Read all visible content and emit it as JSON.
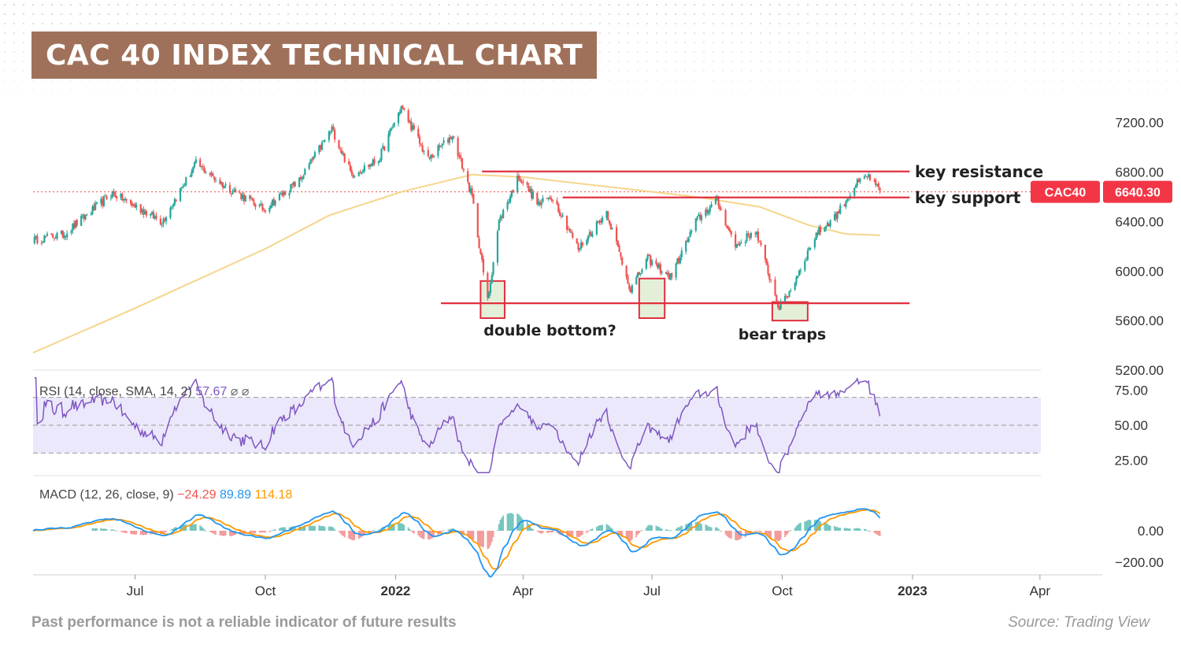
{
  "header": {
    "title": "CAC 40 INDEX TECHNICAL CHART"
  },
  "footer": {
    "disclaimer": "Past performance is not a reliable indicator of future results",
    "source": "Source: Trading View"
  },
  "colors": {
    "up": "#26a69a",
    "down": "#ef5350",
    "sma": "#f6d58a",
    "levels": "#e0303f",
    "rsi": "#7e57c2",
    "rsi_band": "#ece8fb",
    "macd": "#2196f3",
    "signal": "#ff9800",
    "title_bg": "#a0715a"
  },
  "chart_data": [
    {
      "type": "candlestick",
      "symbol": "CAC40",
      "last_price_label": "6640.30",
      "ylim": [
        5200,
        7300
      ],
      "y_ticks": [
        "7200.00",
        "6800.00",
        "6400.00",
        "6000.00",
        "5600.00",
        "5200.00"
      ],
      "x_ticks": [
        {
          "date": "2021-07-01",
          "label": "Jul"
        },
        {
          "date": "2021-10-01",
          "label": "Oct"
        },
        {
          "date": "2022-01-01",
          "label": "2022"
        },
        {
          "date": "2022-04-01",
          "label": "Apr"
        },
        {
          "date": "2022-07-01",
          "label": "Jul"
        },
        {
          "date": "2022-10-01",
          "label": "Oct"
        },
        {
          "date": "2023-01-01",
          "label": "2023"
        },
        {
          "date": "2023-04-01",
          "label": "Apr"
        }
      ],
      "x_range": [
        "2021-04-20",
        "2023-05-15"
      ],
      "close_path": [
        [
          "2021-04-20",
          6250
        ],
        [
          "2021-05-12",
          6300
        ],
        [
          "2021-06-15",
          6630
        ],
        [
          "2021-07-20",
          6400
        ],
        [
          "2021-08-13",
          6870
        ],
        [
          "2021-09-01",
          6700
        ],
        [
          "2021-09-30",
          6500
        ],
        [
          "2021-10-25",
          6730
        ],
        [
          "2021-11-17",
          7150
        ],
        [
          "2021-12-01",
          6780
        ],
        [
          "2021-12-20",
          6900
        ],
        [
          "2022-01-05",
          7330
        ],
        [
          "2022-01-24",
          6900
        ],
        [
          "2022-02-10",
          7100
        ],
        [
          "2022-02-24",
          6600
        ],
        [
          "2022-03-07",
          5760
        ],
        [
          "2022-03-15",
          6400
        ],
        [
          "2022-03-29",
          6770
        ],
        [
          "2022-04-12",
          6540
        ],
        [
          "2022-04-22",
          6600
        ],
        [
          "2022-05-10",
          6180
        ],
        [
          "2022-05-30",
          6480
        ],
        [
          "2022-06-16",
          5850
        ],
        [
          "2022-06-28",
          6100
        ],
        [
          "2022-07-14",
          5950
        ],
        [
          "2022-08-02",
          6420
        ],
        [
          "2022-08-16",
          6570
        ],
        [
          "2022-08-29",
          6200
        ],
        [
          "2022-09-12",
          6330
        ],
        [
          "2022-09-29",
          5700
        ],
        [
          "2022-10-07",
          5850
        ],
        [
          "2022-10-25",
          6300
        ],
        [
          "2022-11-08",
          6450
        ],
        [
          "2022-11-22",
          6700
        ],
        [
          "2022-12-01",
          6770
        ],
        [
          "2022-12-09",
          6640
        ]
      ],
      "sma_200": [
        [
          "2021-04-20",
          5340
        ],
        [
          "2021-07-01",
          5700
        ],
        [
          "2021-10-01",
          6180
        ],
        [
          "2021-11-15",
          6450
        ],
        [
          "2022-01-05",
          6640
        ],
        [
          "2022-02-24",
          6780
        ],
        [
          "2022-04-01",
          6760
        ],
        [
          "2022-06-01",
          6680
        ],
        [
          "2022-08-01",
          6600
        ],
        [
          "2022-09-15",
          6520
        ],
        [
          "2022-10-20",
          6370
        ],
        [
          "2022-11-15",
          6300
        ],
        [
          "2022-12-09",
          6290
        ]
      ],
      "levels": [
        {
          "name": "key resistance",
          "value": 6805,
          "from": "2022-03-03",
          "to": "2022-12-30"
        },
        {
          "name": "key support",
          "value": 6595,
          "from": "2022-04-29",
          "to": "2022-12-30"
        },
        {
          "value": 5740,
          "from": "2022-02-02",
          "to": "2022-12-30"
        }
      ],
      "zones": [
        {
          "from": "2022-03-02",
          "to": "2022-03-19",
          "low": 5620,
          "high": 5920
        },
        {
          "from": "2022-06-22",
          "to": "2022-07-10",
          "low": 5620,
          "high": 5940
        },
        {
          "from": "2022-09-24",
          "to": "2022-10-19",
          "low": 5600,
          "high": 5750
        }
      ],
      "annotations": [
        {
          "text": "double bottom?",
          "date": "2022-04-20",
          "value": 5530
        },
        {
          "text": "bear traps",
          "date": "2022-10-01",
          "value": 5500
        }
      ]
    },
    {
      "type": "line",
      "name": "RSI",
      "legend": {
        "name": "RSI (14, close, SMA, 14, 2)",
        "value": "57.67",
        "extra": "⌀ ⌀"
      },
      "ylim": [
        15,
        85
      ],
      "y_ticks": [
        "75.00",
        "50.00",
        "25.00"
      ],
      "band": [
        30,
        70
      ],
      "mid": 50
    },
    {
      "type": "line",
      "name": "MACD",
      "legend": {
        "name": "MACD (12, 26, close, 9)",
        "values": [
          "−24.29",
          "89.89",
          "114.18"
        ]
      },
      "ylim": [
        -270,
        330
      ],
      "y_ticks": [
        "0.00",
        "−200.00"
      ]
    }
  ]
}
